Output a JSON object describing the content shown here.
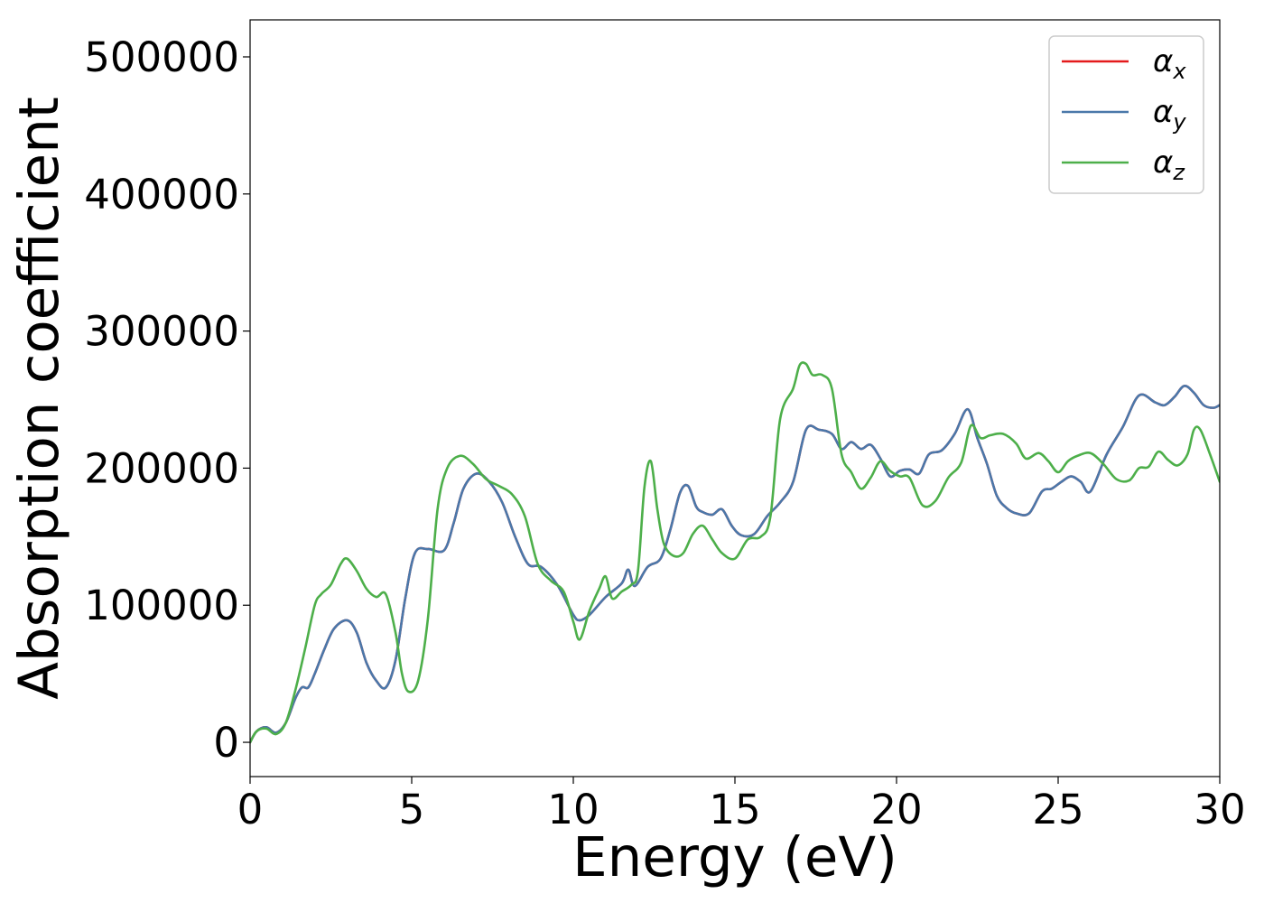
{
  "chart_data": {
    "type": "line",
    "xlabel": "Energy (eV)",
    "ylabel": "Absorption coefficient",
    "xlim": [
      0,
      30
    ],
    "ylim": [
      -25000,
      527000
    ],
    "xticks": [
      0,
      5,
      10,
      15,
      20,
      25,
      30
    ],
    "yticks": [
      0,
      100000,
      200000,
      300000,
      400000,
      500000
    ],
    "grid": false,
    "legend_position": "top-right",
    "series": [
      {
        "name": "αx",
        "symbol": "α",
        "subscript": "x",
        "color": "#e41a1c",
        "x": [
          0,
          0.2,
          0.5,
          0.8,
          1.1,
          1.4,
          1.6,
          1.8,
          2.0,
          2.3,
          2.6,
          3.0,
          3.3,
          3.6,
          3.9,
          4.2,
          4.5,
          4.8,
          5.1,
          5.5,
          6.0,
          6.3,
          6.6,
          7.0,
          7.4,
          7.8,
          8.2,
          8.6,
          9.0,
          9.5,
          10.0,
          10.2,
          10.5,
          11.0,
          11.5,
          11.7,
          11.9,
          12.3,
          12.7,
          13.0,
          13.3,
          13.55,
          13.8,
          14.0,
          14.3,
          14.6,
          14.9,
          15.2,
          15.6,
          16.0,
          16.4,
          16.8,
          17.2,
          17.6,
          18.0,
          18.3,
          18.6,
          18.9,
          19.2,
          19.5,
          19.8,
          20.1,
          20.4,
          20.7,
          21.0,
          21.4,
          21.8,
          22.2,
          22.5,
          22.8,
          23.1,
          23.4,
          23.7,
          24.1,
          24.5,
          24.8,
          25.1,
          25.4,
          25.7,
          26.0,
          26.5,
          27.0,
          27.5,
          28.0,
          28.3,
          28.6,
          28.9,
          29.2,
          29.5,
          29.8,
          30.0
        ],
        "y": [
          0,
          8000,
          11000,
          7000,
          14000,
          32000,
          40000,
          40000,
          50000,
          68000,
          83000,
          89000,
          80000,
          58000,
          45000,
          40000,
          60000,
          105000,
          138000,
          141000,
          140000,
          160000,
          185000,
          196000,
          190000,
          175000,
          150000,
          130000,
          128000,
          115000,
          93000,
          89000,
          93000,
          106000,
          116000,
          126000,
          114000,
          128000,
          134000,
          155000,
          182000,
          187000,
          172000,
          168000,
          166000,
          170000,
          158000,
          151000,
          152000,
          165000,
          175000,
          190000,
          228000,
          228000,
          225000,
          214000,
          219000,
          214000,
          217000,
          207000,
          194000,
          198000,
          199000,
          196000,
          210000,
          213000,
          225000,
          243000,
          222000,
          203000,
          180000,
          171000,
          167000,
          167000,
          183000,
          185000,
          190000,
          194000,
          190000,
          183000,
          210000,
          230000,
          253000,
          248000,
          246000,
          252000,
          260000,
          255000,
          246000,
          244000,
          246000
        ]
      },
      {
        "name": "αy",
        "symbol": "α",
        "subscript": "y",
        "color": "#4a78aa",
        "x": [
          0,
          0.2,
          0.5,
          0.8,
          1.1,
          1.4,
          1.6,
          1.8,
          2.0,
          2.3,
          2.6,
          3.0,
          3.3,
          3.6,
          3.9,
          4.2,
          4.5,
          4.8,
          5.1,
          5.5,
          6.0,
          6.3,
          6.6,
          7.0,
          7.4,
          7.8,
          8.2,
          8.6,
          9.0,
          9.5,
          10.0,
          10.2,
          10.5,
          11.0,
          11.5,
          11.7,
          11.9,
          12.3,
          12.7,
          13.0,
          13.3,
          13.55,
          13.8,
          14.0,
          14.3,
          14.6,
          14.9,
          15.2,
          15.6,
          16.0,
          16.4,
          16.8,
          17.2,
          17.6,
          18.0,
          18.3,
          18.6,
          18.9,
          19.2,
          19.5,
          19.8,
          20.1,
          20.4,
          20.7,
          21.0,
          21.4,
          21.8,
          22.2,
          22.5,
          22.8,
          23.1,
          23.4,
          23.7,
          24.1,
          24.5,
          24.8,
          25.1,
          25.4,
          25.7,
          26.0,
          26.5,
          27.0,
          27.5,
          28.0,
          28.3,
          28.6,
          28.9,
          29.2,
          29.5,
          29.8,
          30.0
        ],
        "y": [
          0,
          8000,
          11000,
          7000,
          14000,
          32000,
          40000,
          40000,
          50000,
          68000,
          83000,
          89000,
          80000,
          58000,
          45000,
          40000,
          60000,
          105000,
          138000,
          141000,
          140000,
          160000,
          185000,
          196000,
          190000,
          175000,
          150000,
          130000,
          128000,
          115000,
          93000,
          89000,
          93000,
          106000,
          116000,
          126000,
          114000,
          128000,
          134000,
          155000,
          182000,
          187000,
          172000,
          168000,
          166000,
          170000,
          158000,
          151000,
          152000,
          165000,
          175000,
          190000,
          228000,
          228000,
          225000,
          214000,
          219000,
          214000,
          217000,
          207000,
          194000,
          198000,
          199000,
          196000,
          210000,
          213000,
          225000,
          243000,
          222000,
          203000,
          180000,
          171000,
          167000,
          167000,
          183000,
          185000,
          190000,
          194000,
          190000,
          183000,
          210000,
          230000,
          253000,
          248000,
          246000,
          252000,
          260000,
          255000,
          246000,
          244000,
          246000
        ]
      },
      {
        "name": "αz",
        "symbol": "α",
        "subscript": "z",
        "color": "#4daf4a",
        "x": [
          0,
          0.2,
          0.5,
          0.8,
          1.1,
          1.4,
          1.7,
          2.0,
          2.2,
          2.5,
          2.8,
          3.0,
          3.3,
          3.6,
          3.9,
          4.2,
          4.5,
          4.7,
          4.9,
          5.2,
          5.5,
          5.8,
          6.1,
          6.5,
          6.9,
          7.3,
          7.7,
          8.1,
          8.5,
          8.9,
          9.3,
          9.7,
          10.0,
          10.2,
          10.5,
          10.8,
          11.0,
          11.2,
          11.5,
          11.8,
          12.0,
          12.2,
          12.4,
          12.6,
          12.8,
          13.1,
          13.4,
          13.7,
          14.0,
          14.3,
          14.6,
          15.0,
          15.4,
          15.8,
          16.1,
          16.4,
          16.8,
          17.0,
          17.2,
          17.4,
          17.7,
          18.0,
          18.3,
          18.6,
          18.9,
          19.2,
          19.5,
          19.8,
          20.1,
          20.4,
          20.8,
          21.2,
          21.6,
          22.0,
          22.3,
          22.6,
          22.9,
          23.3,
          23.7,
          24.0,
          24.4,
          24.7,
          25.0,
          25.3,
          25.6,
          26.0,
          26.4,
          26.8,
          27.2,
          27.5,
          27.8,
          28.1,
          28.4,
          28.7,
          29.0,
          29.2,
          29.4,
          29.7,
          30.0
        ],
        "y": [
          0,
          8000,
          10000,
          6000,
          14000,
          38000,
          68000,
          100000,
          108000,
          115000,
          130000,
          134000,
          125000,
          112000,
          106000,
          108000,
          80000,
          50000,
          37000,
          45000,
          90000,
          170000,
          200000,
          209000,
          203000,
          192000,
          187000,
          181000,
          165000,
          130000,
          118000,
          110000,
          88000,
          75000,
          96000,
          112000,
          121000,
          105000,
          110000,
          115000,
          125000,
          186000,
          205000,
          170000,
          145000,
          136000,
          138000,
          152000,
          158000,
          148000,
          138000,
          134000,
          148000,
          150000,
          165000,
          236000,
          258000,
          275000,
          276000,
          268000,
          268000,
          258000,
          210000,
          197000,
          185000,
          193000,
          205000,
          198000,
          194000,
          193000,
          173000,
          176000,
          193000,
          204000,
          231000,
          222000,
          224000,
          225000,
          218000,
          207000,
          211000,
          205000,
          197000,
          205000,
          209000,
          211000,
          203000,
          192000,
          191000,
          200000,
          201000,
          212000,
          206000,
          202000,
          210000,
          228000,
          228000,
          210000,
          190000
        ]
      }
    ]
  }
}
